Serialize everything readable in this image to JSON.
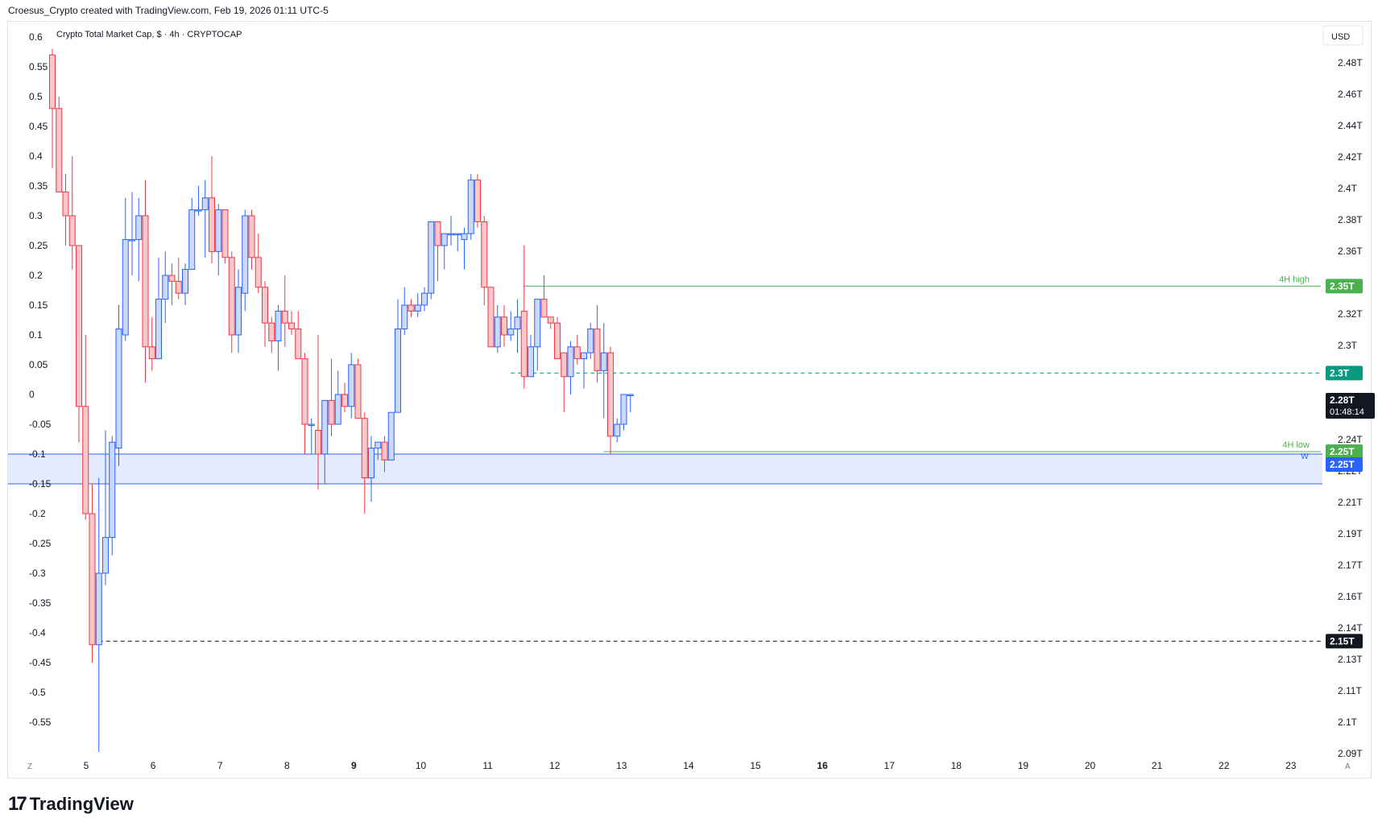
{
  "attribution": "Croesus_Crypto created with TradingView.com, Feb 19, 2026 01:11 UTC-5",
  "brand": {
    "name": "TradingView",
    "icon": "tradingview-logo-icon"
  },
  "chart_data": {
    "type": "candlestick",
    "title": "Crypto Total Market Cap, $ · 4h · CRYPTOCAP",
    "currency_button": "USD",
    "corner_labels": {
      "left": "Z",
      "right": "A"
    },
    "right_axis": {
      "unit": "T",
      "ticks": [
        "2.48T",
        "2.46T",
        "2.44T",
        "2.42T",
        "2.4T",
        "2.38T",
        "2.36T",
        "2.34T",
        "2.32T",
        "2.3T",
        "2.28T",
        "2.26T",
        "2.24T",
        "2.22T",
        "2.21T",
        "2.19T",
        "2.17T",
        "2.16T",
        "2.14T",
        "2.13T",
        "2.11T",
        "2.1T",
        "2.09T"
      ]
    },
    "left_axis": {
      "ticks": [
        "0.6",
        "0.55",
        "0.5",
        "0.45",
        "0.4",
        "0.35",
        "0.3",
        "0.25",
        "0.2",
        "0.15",
        "0.1",
        "0.05",
        "0",
        "-0.05",
        "-0.1",
        "-0.15",
        "-0.2",
        "-0.25",
        "-0.3",
        "-0.35",
        "-0.4",
        "-0.45",
        "-0.5",
        "-0.55"
      ]
    },
    "x_axis": {
      "ticks": [
        "5",
        "6",
        "7",
        "8",
        "9",
        "10",
        "11",
        "12",
        "13",
        "14",
        "15",
        "16",
        "17",
        "18",
        "19",
        "20",
        "21",
        "22",
        "23"
      ],
      "bold_ticks": [
        "9",
        "16"
      ]
    },
    "colors": {
      "up": "#2962ff",
      "up_fill": "#c9d8fb",
      "down": "#f23645",
      "down_fill": "#f9c6c9",
      "zone": "#e4ebfd",
      "zone_line": "#2962ff",
      "level_line": "#4caf50",
      "dashed_teal": "#089981"
    },
    "candles": [
      {
        "o": 0.57,
        "h": 0.58,
        "l": 0.38,
        "c": 0.48
      },
      {
        "o": 0.48,
        "h": 0.5,
        "l": 0.34,
        "c": 0.34
      },
      {
        "o": 0.34,
        "h": 0.37,
        "l": 0.25,
        "c": 0.3
      },
      {
        "o": 0.3,
        "h": 0.4,
        "l": 0.21,
        "c": 0.25
      },
      {
        "o": 0.25,
        "h": 0.25,
        "l": -0.08,
        "c": -0.02
      },
      {
        "o": -0.02,
        "h": 0.1,
        "l": -0.21,
        "c": -0.2
      },
      {
        "o": -0.2,
        "h": -0.15,
        "l": -0.45,
        "c": -0.42
      },
      {
        "o": -0.42,
        "h": -0.14,
        "l": -0.6,
        "c": -0.3
      },
      {
        "o": -0.3,
        "h": -0.06,
        "l": -0.32,
        "c": -0.24
      },
      {
        "o": -0.24,
        "h": -0.07,
        "l": -0.27,
        "c": -0.08
      },
      {
        "o": -0.09,
        "h": 0.15,
        "l": -0.12,
        "c": 0.11
      },
      {
        "o": 0.1,
        "h": 0.33,
        "l": 0.09,
        "c": 0.26
      },
      {
        "o": 0.26,
        "h": 0.34,
        "l": 0.2,
        "c": 0.26
      },
      {
        "o": 0.26,
        "h": 0.33,
        "l": 0.19,
        "c": 0.3
      },
      {
        "o": 0.3,
        "h": 0.36,
        "l": 0.02,
        "c": 0.08
      },
      {
        "o": 0.08,
        "h": 0.13,
        "l": 0.04,
        "c": 0.06
      },
      {
        "o": 0.06,
        "h": 0.23,
        "l": 0.06,
        "c": 0.16
      },
      {
        "o": 0.16,
        "h": 0.24,
        "l": 0.12,
        "c": 0.2
      },
      {
        "o": 0.2,
        "h": 0.22,
        "l": 0.15,
        "c": 0.19
      },
      {
        "o": 0.19,
        "h": 0.23,
        "l": 0.16,
        "c": 0.17
      },
      {
        "o": 0.17,
        "h": 0.22,
        "l": 0.15,
        "c": 0.21
      },
      {
        "o": 0.21,
        "h": 0.33,
        "l": 0.21,
        "c": 0.31
      },
      {
        "o": 0.31,
        "h": 0.35,
        "l": 0.3,
        "c": 0.31
      },
      {
        "o": 0.31,
        "h": 0.36,
        "l": 0.23,
        "c": 0.33
      },
      {
        "o": 0.33,
        "h": 0.4,
        "l": 0.22,
        "c": 0.24
      },
      {
        "o": 0.24,
        "h": 0.32,
        "l": 0.2,
        "c": 0.31
      },
      {
        "o": 0.31,
        "h": 0.31,
        "l": 0.22,
        "c": 0.23
      },
      {
        "o": 0.23,
        "h": 0.24,
        "l": 0.07,
        "c": 0.1
      },
      {
        "o": 0.1,
        "h": 0.21,
        "l": 0.07,
        "c": 0.18
      },
      {
        "o": 0.17,
        "h": 0.31,
        "l": 0.14,
        "c": 0.3
      },
      {
        "o": 0.3,
        "h": 0.31,
        "l": 0.21,
        "c": 0.23
      },
      {
        "o": 0.23,
        "h": 0.27,
        "l": 0.17,
        "c": 0.18
      },
      {
        "o": 0.18,
        "h": 0.19,
        "l": 0.08,
        "c": 0.12
      },
      {
        "o": 0.12,
        "h": 0.13,
        "l": 0.07,
        "c": 0.09
      },
      {
        "o": 0.09,
        "h": 0.15,
        "l": 0.04,
        "c": 0.14
      },
      {
        "o": 0.14,
        "h": 0.2,
        "l": 0.08,
        "c": 0.12
      },
      {
        "o": 0.12,
        "h": 0.14,
        "l": 0.1,
        "c": 0.11
      },
      {
        "o": 0.11,
        "h": 0.14,
        "l": 0.06,
        "c": 0.06
      },
      {
        "o": 0.06,
        "h": 0.07,
        "l": -0.1,
        "c": -0.05
      },
      {
        "o": -0.05,
        "h": -0.04,
        "l": -0.1,
        "c": -0.05
      },
      {
        "o": -0.06,
        "h": 0.1,
        "l": -0.16,
        "c": -0.1
      },
      {
        "o": -0.1,
        "h": -0.01,
        "l": -0.15,
        "c": -0.01
      },
      {
        "o": -0.01,
        "h": 0.06,
        "l": -0.07,
        "c": -0.05
      },
      {
        "o": -0.05,
        "h": 0.04,
        "l": -0.05,
        "c": 0.0
      },
      {
        "o": 0.0,
        "h": 0.02,
        "l": -0.03,
        "c": -0.02
      },
      {
        "o": -0.02,
        "h": 0.07,
        "l": -0.04,
        "c": 0.05
      },
      {
        "o": 0.05,
        "h": 0.06,
        "l": -0.04,
        "c": -0.04
      },
      {
        "o": -0.04,
        "h": -0.03,
        "l": -0.2,
        "c": -0.14
      },
      {
        "o": -0.14,
        "h": -0.07,
        "l": -0.18,
        "c": -0.09
      },
      {
        "o": -0.09,
        "h": -0.08,
        "l": -0.11,
        "c": -0.08
      },
      {
        "o": -0.08,
        "h": -0.07,
        "l": -0.13,
        "c": -0.11
      },
      {
        "o": -0.11,
        "h": -0.03,
        "l": -0.11,
        "c": -0.03
      },
      {
        "o": -0.03,
        "h": 0.16,
        "l": -0.03,
        "c": 0.11
      },
      {
        "o": 0.11,
        "h": 0.18,
        "l": 0.1,
        "c": 0.15
      },
      {
        "o": 0.15,
        "h": 0.16,
        "l": 0.13,
        "c": 0.14
      },
      {
        "o": 0.14,
        "h": 0.17,
        "l": 0.13,
        "c": 0.15
      },
      {
        "o": 0.15,
        "h": 0.18,
        "l": 0.14,
        "c": 0.17
      },
      {
        "o": 0.17,
        "h": 0.29,
        "l": 0.16,
        "c": 0.29
      },
      {
        "o": 0.29,
        "h": 0.29,
        "l": 0.19,
        "c": 0.25
      },
      {
        "o": 0.25,
        "h": 0.27,
        "l": 0.21,
        "c": 0.27
      },
      {
        "o": 0.27,
        "h": 0.3,
        "l": 0.25,
        "c": 0.27
      },
      {
        "o": 0.27,
        "h": 0.27,
        "l": 0.24,
        "c": 0.27
      },
      {
        "o": 0.26,
        "h": 0.28,
        "l": 0.21,
        "c": 0.27
      },
      {
        "o": 0.27,
        "h": 0.37,
        "l": 0.26,
        "c": 0.36
      },
      {
        "o": 0.36,
        "h": 0.37,
        "l": 0.28,
        "c": 0.29
      },
      {
        "o": 0.29,
        "h": 0.3,
        "l": 0.15,
        "c": 0.18
      },
      {
        "o": 0.18,
        "h": 0.18,
        "l": 0.08,
        "c": 0.08
      },
      {
        "o": 0.08,
        "h": 0.15,
        "l": 0.07,
        "c": 0.13
      },
      {
        "o": 0.13,
        "h": 0.15,
        "l": 0.08,
        "c": 0.1
      },
      {
        "o": 0.1,
        "h": 0.14,
        "l": 0.09,
        "c": 0.11
      },
      {
        "o": 0.11,
        "h": 0.16,
        "l": 0.07,
        "c": 0.13
      },
      {
        "o": 0.14,
        "h": 0.25,
        "l": 0.01,
        "c": 0.03
      },
      {
        "o": 0.03,
        "h": 0.1,
        "l": 0.03,
        "c": 0.08
      },
      {
        "o": 0.08,
        "h": 0.16,
        "l": 0.04,
        "c": 0.16
      },
      {
        "o": 0.16,
        "h": 0.2,
        "l": 0.13,
        "c": 0.13
      },
      {
        "o": 0.13,
        "h": 0.13,
        "l": 0.11,
        "c": 0.12
      },
      {
        "o": 0.12,
        "h": 0.13,
        "l": 0.06,
        "c": 0.06
      },
      {
        "o": 0.07,
        "h": 0.07,
        "l": -0.03,
        "c": 0.03
      },
      {
        "o": 0.03,
        "h": 0.09,
        "l": 0.0,
        "c": 0.08
      },
      {
        "o": 0.08,
        "h": 0.1,
        "l": 0.05,
        "c": 0.06
      },
      {
        "o": 0.06,
        "h": 0.07,
        "l": 0.01,
        "c": 0.07
      },
      {
        "o": 0.07,
        "h": 0.12,
        "l": 0.06,
        "c": 0.11
      },
      {
        "o": 0.11,
        "h": 0.15,
        "l": 0.02,
        "c": 0.04
      },
      {
        "o": 0.04,
        "h": 0.12,
        "l": -0.04,
        "c": 0.07
      },
      {
        "o": 0.07,
        "h": 0.08,
        "l": -0.1,
        "c": -0.07
      },
      {
        "o": -0.07,
        "h": -0.04,
        "l": -0.08,
        "c": -0.05
      },
      {
        "o": -0.05,
        "h": 0.0,
        "l": -0.06,
        "c": 0.0
      },
      {
        "o": 0.0,
        "h": 0.0,
        "l": -0.03,
        "c": 0.0
      }
    ],
    "levels": [
      {
        "label": "4H high",
        "tag": "2.35T",
        "y": 0.182,
        "color": "#4caf50",
        "style": "solid",
        "from_candle": 71
      },
      {
        "label": "",
        "tag": "2.3T",
        "y": 0.036,
        "color": "#089981",
        "style": "dashed",
        "from_candle": 69
      },
      {
        "label": "4H low",
        "tag": "2.25T",
        "y": -0.096,
        "color": "#4caf50",
        "style": "solid",
        "from_candle": 83,
        "marker": "W"
      },
      {
        "label": "",
        "tag": "2.15T",
        "y": -0.414,
        "color": "#131722",
        "style": "dashed",
        "from_candle": 7
      }
    ],
    "zone": {
      "y_top": -0.1,
      "y_bottom": -0.15,
      "tag": "2.25T",
      "color": "#e4ebfd",
      "line": "#2962ff"
    },
    "last_price": {
      "tag": "2.28T",
      "countdown": "01:48:14",
      "y": 0.0
    }
  }
}
